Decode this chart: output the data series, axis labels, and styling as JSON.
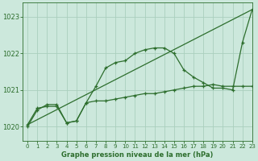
{
  "background_color": "#cce8dc",
  "grid_color": "#aacfbe",
  "line_color": "#2d6e2d",
  "title": "Graphe pression niveau de la mer (hPa)",
  "xlim": [
    -0.5,
    23
  ],
  "ylim": [
    1019.6,
    1023.4
  ],
  "yticks": [
    1020,
    1021,
    1022,
    1023
  ],
  "xticks": [
    0,
    1,
    2,
    3,
    4,
    5,
    6,
    7,
    8,
    9,
    10,
    11,
    12,
    13,
    14,
    15,
    16,
    17,
    18,
    19,
    20,
    21,
    22,
    23
  ],
  "trend_x": [
    0,
    23
  ],
  "trend_y": [
    1020.05,
    1023.2
  ],
  "curve1_x": [
    0,
    1,
    2,
    3,
    4,
    5,
    6,
    7,
    8,
    9,
    10,
    11,
    12,
    13,
    14,
    15,
    16,
    17,
    18,
    19,
    20,
    21,
    22,
    23
  ],
  "curve1_y": [
    1020.05,
    1020.5,
    1020.55,
    1020.55,
    1020.1,
    1020.15,
    1020.65,
    1021.1,
    1021.6,
    1021.75,
    1021.8,
    1022.0,
    1022.1,
    1022.15,
    1022.15,
    1022.0,
    1021.55,
    1021.35,
    1021.2,
    1021.05,
    1021.05,
    1021.0,
    1022.3,
    1023.2
  ],
  "curve2_x": [
    0,
    1,
    2,
    3,
    4,
    5,
    6,
    7,
    8,
    9,
    10,
    11,
    12,
    13,
    14,
    15,
    16,
    17,
    18,
    19,
    20,
    21,
    22,
    23
  ],
  "curve2_y": [
    1020.0,
    1020.45,
    1020.6,
    1020.6,
    1020.1,
    1020.15,
    1020.65,
    1020.7,
    1020.7,
    1020.75,
    1020.8,
    1020.85,
    1020.9,
    1020.9,
    1020.95,
    1021.0,
    1021.05,
    1021.1,
    1021.1,
    1021.15,
    1021.1,
    1021.1,
    1021.1,
    1021.1
  ]
}
